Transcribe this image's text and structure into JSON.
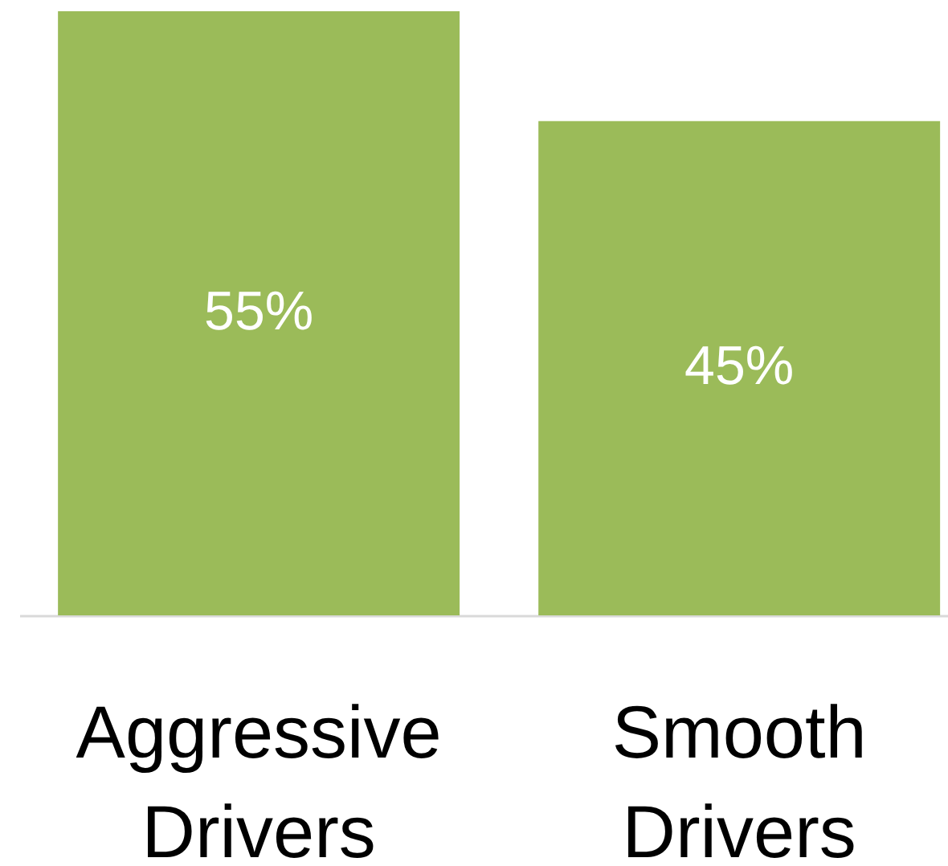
{
  "chart_data": {
    "type": "bar",
    "categories": [
      "Aggressive Drivers",
      "Smooth Drivers"
    ],
    "values": [
      55,
      45
    ],
    "color": "#9bbb59",
    "value_labels": [
      "55%",
      "45%"
    ],
    "ylim": [
      0,
      55
    ],
    "tick_labels": "x"
  }
}
